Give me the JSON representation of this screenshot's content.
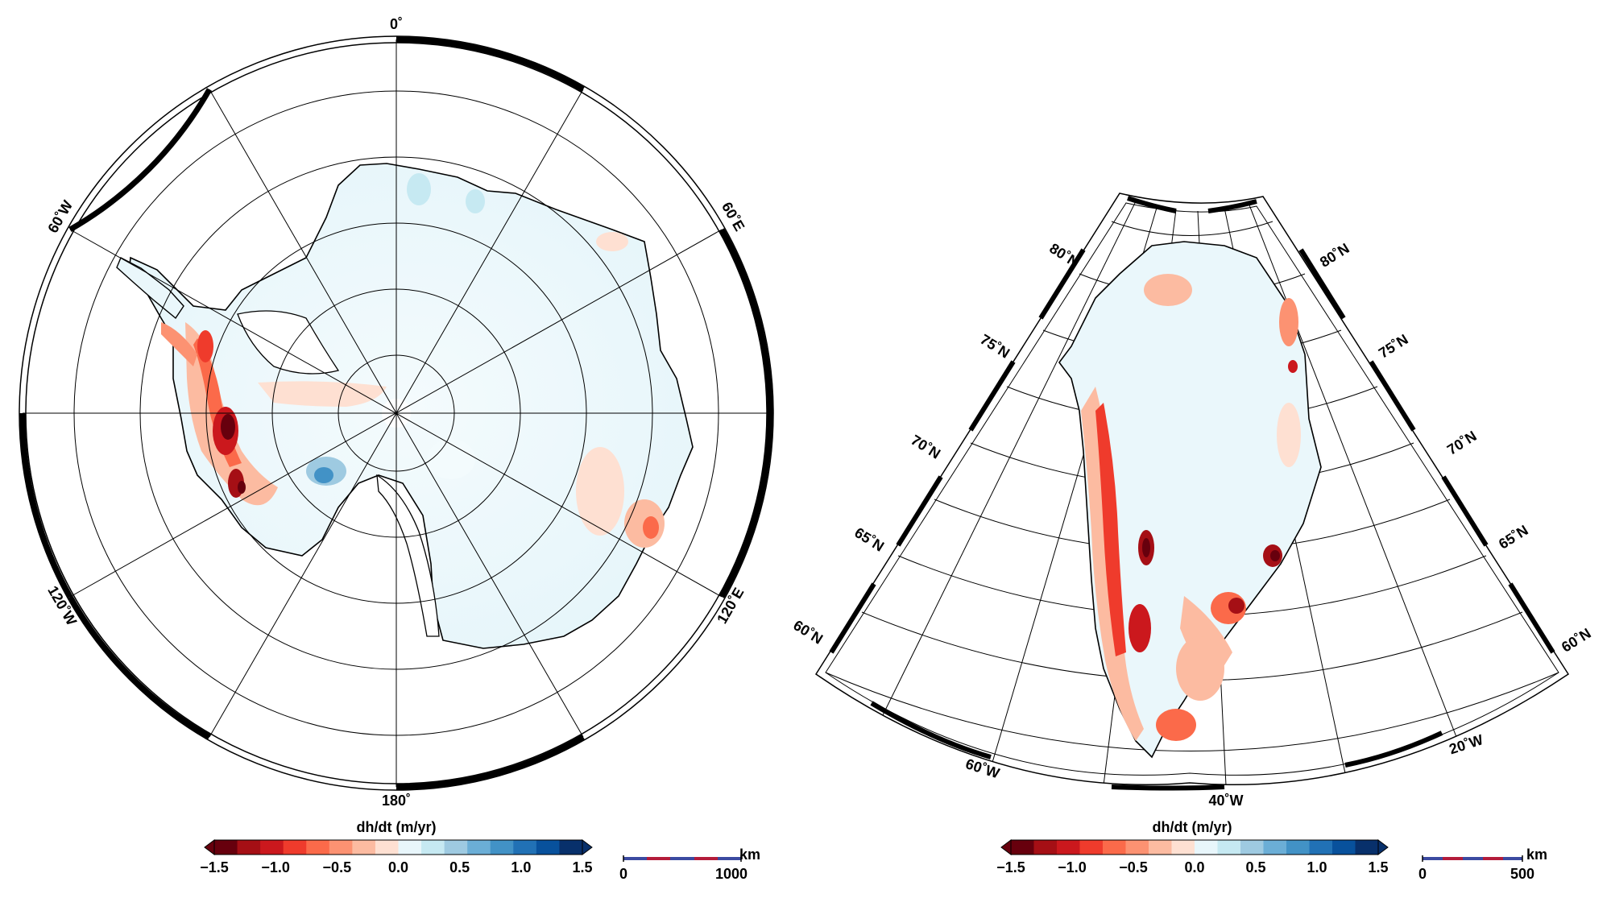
{
  "antarctica": {
    "labels": {
      "top": "0˚",
      "bottom": "180˚",
      "left_top": "60˚W",
      "right_top": "60˚E",
      "left_bottom": "120˚W",
      "right_bottom": "120˚E"
    },
    "colorbar": {
      "title": "dh/dt (m/yr)",
      "ticks": [
        "−1.5",
        "−1.0",
        "−0.5",
        "0.0",
        "0.5",
        "1.0",
        "1.5"
      ]
    },
    "scalebar": {
      "unit": "km",
      "start": "0",
      "end": "1000"
    }
  },
  "greenland": {
    "lat_labels_left": [
      "80˚N",
      "75˚N",
      "70˚N",
      "65˚N",
      "60˚N"
    ],
    "lat_labels_right": [
      "80˚N",
      "75˚N",
      "70˚N",
      "65˚N",
      "60˚N"
    ],
    "lon_labels_bottom": [
      "60˚W",
      "40˚W",
      "20˚W"
    ],
    "colorbar": {
      "title": "dh/dt (m/yr)",
      "ticks": [
        "−1.5",
        "−1.0",
        "−0.5",
        "0.0",
        "0.5",
        "1.0",
        "1.5"
      ]
    },
    "scalebar": {
      "unit": "km",
      "start": "0",
      "end": "500"
    }
  },
  "colors": {
    "ramp": [
      "#67000d",
      "#a50f15",
      "#cb181d",
      "#ef3b2c",
      "#fb6a4a",
      "#fc9272",
      "#fcbba1",
      "#fee0d2",
      "#e8f6fb",
      "#c6e9f2",
      "#9ecae1",
      "#6baed6",
      "#4292c6",
      "#2171b5",
      "#08519c",
      "#08306b"
    ],
    "ice_background": "#eaf7fb",
    "ocean": "#ffffff"
  }
}
